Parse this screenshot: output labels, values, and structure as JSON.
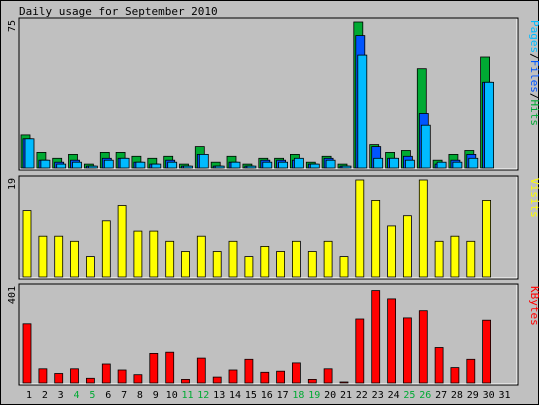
{
  "chart_data": {
    "title": "Daily usage for September 2010",
    "type": "bar",
    "days": [
      "1",
      "2",
      "3",
      "4",
      "5",
      "6",
      "7",
      "8",
      "9",
      "10",
      "11",
      "12",
      "13",
      "14",
      "15",
      "16",
      "17",
      "18",
      "19",
      "20",
      "21",
      "22",
      "23",
      "24",
      "25",
      "26",
      "27",
      "28",
      "29",
      "30",
      "31"
    ],
    "weekend_days": [
      "4",
      "5",
      "11",
      "12",
      "18",
      "19",
      "25",
      "26"
    ],
    "colors": {
      "hits": "#00aa33",
      "files": "#0055ff",
      "pages": "#00bbff",
      "visits": "#ffff00",
      "kbytes": "#ff0000",
      "weekend_text": "#00aa33",
      "weekday_text": "#000000",
      "background": "#c0c0c0"
    },
    "panels": [
      {
        "id": "hits",
        "max_label": "75",
        "ymax": 75,
        "legend": [
          {
            "text": "Pages",
            "color": "#00bbff"
          },
          {
            "text": "/",
            "color": "#000000"
          },
          {
            "text": "Files",
            "color": "#0055ff"
          },
          {
            "text": "/",
            "color": "#000000"
          },
          {
            "text": "Hits",
            "color": "#00aa33"
          }
        ],
        "series": [
          {
            "name": "Hits",
            "color": "#00aa33",
            "values": [
              17,
              8,
              5,
              7,
              2,
              8,
              8,
              6,
              5,
              6,
              2,
              11,
              3,
              6,
              2,
              5,
              5,
              7,
              3,
              6,
              2,
              75,
              12,
              8,
              9,
              51,
              4,
              7,
              9,
              57,
              0
            ]
          },
          {
            "name": "Files",
            "color": "#0055ff",
            "values": [
              15,
              4,
              3,
              4,
              1,
              5,
              5,
              3,
              2,
              4,
              1,
              7,
              1,
              3,
              1,
              4,
              4,
              4,
              2,
              5,
              1,
              68,
              11,
              5,
              6,
              28,
              2,
              4,
              7,
              44,
              0
            ]
          },
          {
            "name": "Pages",
            "color": "#00bbff",
            "values": [
              15,
              4,
              2,
              3,
              1,
              4,
              5,
              3,
              2,
              3,
              1,
              7,
              1,
              3,
              1,
              3,
              3,
              5,
              2,
              4,
              1,
              58,
              5,
              5,
              4,
              22,
              3,
              3,
              5,
              44,
              0
            ]
          }
        ]
      },
      {
        "id": "visits",
        "max_label": "19",
        "ymax": 19,
        "legend": [
          {
            "text": "Visits",
            "color": "#ffff00"
          }
        ],
        "series": [
          {
            "name": "Visits",
            "color": "#ffff00",
            "values": [
              13,
              8,
              8,
              7,
              4,
              11,
              14,
              9,
              9,
              7,
              5,
              8,
              5,
              7,
              4,
              6,
              5,
              7,
              5,
              7,
              4,
              19,
              15,
              10,
              12,
              19,
              7,
              8,
              7,
              15,
              0
            ]
          }
        ]
      },
      {
        "id": "kbytes",
        "max_label": "401",
        "ymax": 401,
        "legend": [
          {
            "text": "KBytes",
            "color": "#ff0000"
          }
        ],
        "series": [
          {
            "name": "KBytes",
            "color": "#ff0000",
            "values": [
              250,
              60,
              40,
              60,
              20,
              80,
              55,
              35,
              125,
              130,
              15,
              105,
              25,
              55,
              100,
              45,
              50,
              85,
              15,
              60,
              3,
              270,
              390,
              355,
              275,
              305,
              150,
              65,
              100,
              265,
              0
            ]
          }
        ]
      }
    ]
  }
}
